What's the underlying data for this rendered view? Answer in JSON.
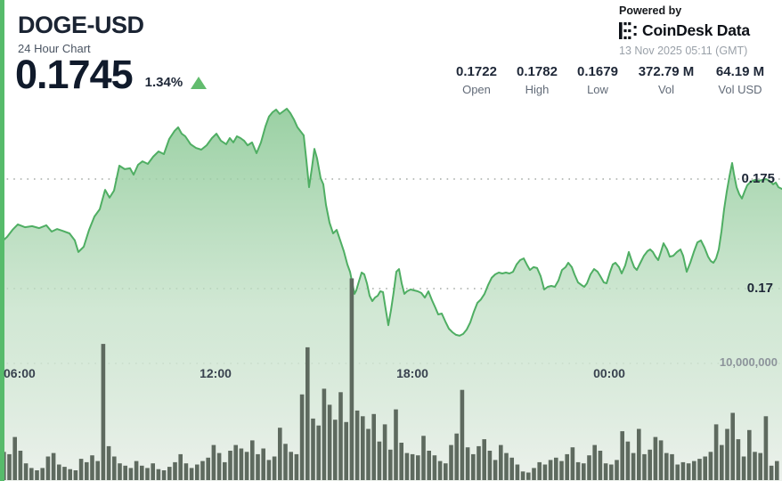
{
  "header": {
    "symbol": "DOGE-USD",
    "subtitle": "24 Hour Chart",
    "price": "0.1745",
    "change_percent": "1.34%",
    "change_direction": "up"
  },
  "attribution": {
    "powered_by": "Powered by",
    "brand": "CoinDesk Data",
    "timestamp": "13 Nov 2025 05:11 (GMT)"
  },
  "stats": [
    {
      "value": "0.1722",
      "label": "Open"
    },
    {
      "value": "0.1782",
      "label": "High"
    },
    {
      "value": "0.1679",
      "label": "Low"
    },
    {
      "value": "372.79 M",
      "label": "Vol"
    },
    {
      "value": "64.19 M",
      "label": "Vol USD"
    }
  ],
  "chart_data": {
    "type": "area",
    "title": "DOGE-USD 24 Hour Chart",
    "x_ticks": [
      "06:00",
      "12:00",
      "18:00",
      "00:00"
    ],
    "price_axis": {
      "gridlines": [
        0.175,
        0.17
      ],
      "labels": [
        "0.175",
        "0.17"
      ],
      "range_shown": [
        0.1665,
        0.1785
      ]
    },
    "volume_axis": {
      "gridline_millions": 10,
      "label": "10,000,000"
    },
    "summary": {
      "open": 0.1722,
      "high": 0.1782,
      "low": 0.1679,
      "close": 0.1745,
      "volume": "372.79 M",
      "volume_usd": "64.19 M"
    },
    "colors": {
      "line": "#4fae63",
      "area_top": "#86c791",
      "area_mid": "#c2e0c6",
      "area_bottom": "#ecf1ec",
      "volume_bar": "#5e6a5f",
      "accent": "#57bb6b",
      "grid_dot": "#a6aca7",
      "up": "#62bc6e"
    },
    "price_series": [
      [
        0,
        0.17207
      ],
      [
        8,
        0.17236
      ],
      [
        14,
        0.17268
      ],
      [
        20,
        0.17293
      ],
      [
        28,
        0.1728
      ],
      [
        36,
        0.17285
      ],
      [
        44,
        0.17276
      ],
      [
        52,
        0.17289
      ],
      [
        58,
        0.1726
      ],
      [
        64,
        0.17272
      ],
      [
        70,
        0.17264
      ],
      [
        78,
        0.17252
      ],
      [
        84,
        0.1722
      ],
      [
        88,
        0.17167
      ],
      [
        94,
        0.17191
      ],
      [
        100,
        0.17268
      ],
      [
        106,
        0.17329
      ],
      [
        112,
        0.17362
      ],
      [
        118,
        0.17451
      ],
      [
        123,
        0.17415
      ],
      [
        128,
        0.17447
      ],
      [
        134,
        0.17561
      ],
      [
        140,
        0.17545
      ],
      [
        146,
        0.17549
      ],
      [
        150,
        0.1752
      ],
      [
        155,
        0.17565
      ],
      [
        160,
        0.17581
      ],
      [
        166,
        0.17569
      ],
      [
        172,
        0.17602
      ],
      [
        178,
        0.17626
      ],
      [
        184,
        0.17614
      ],
      [
        190,
        0.17683
      ],
      [
        196,
        0.1772
      ],
      [
        200,
        0.17736
      ],
      [
        204,
        0.17707
      ],
      [
        208,
        0.17695
      ],
      [
        214,
        0.17659
      ],
      [
        220,
        0.17642
      ],
      [
        226,
        0.17634
      ],
      [
        232,
        0.17654
      ],
      [
        238,
        0.17687
      ],
      [
        243,
        0.17707
      ],
      [
        248,
        0.17675
      ],
      [
        254,
        0.17659
      ],
      [
        258,
        0.17687
      ],
      [
        262,
        0.17667
      ],
      [
        266,
        0.17695
      ],
      [
        270,
        0.17687
      ],
      [
        274,
        0.17675
      ],
      [
        278,
        0.17654
      ],
      [
        283,
        0.17667
      ],
      [
        288,
        0.17618
      ],
      [
        293,
        0.17667
      ],
      [
        298,
        0.1774
      ],
      [
        302,
        0.17785
      ],
      [
        306,
        0.17805
      ],
      [
        310,
        0.17817
      ],
      [
        314,
        0.17797
      ],
      [
        318,
        0.17809
      ],
      [
        322,
        0.17821
      ],
      [
        326,
        0.17801
      ],
      [
        330,
        0.17772
      ],
      [
        334,
        0.17736
      ],
      [
        338,
        0.17715
      ],
      [
        341,
        0.17699
      ],
      [
        344,
        0.17585
      ],
      [
        347,
        0.17463
      ],
      [
        350,
        0.17545
      ],
      [
        353,
        0.17638
      ],
      [
        356,
        0.17594
      ],
      [
        360,
        0.17504
      ],
      [
        363,
        0.17476
      ],
      [
        366,
        0.17382
      ],
      [
        370,
        0.17301
      ],
      [
        374,
        0.17252
      ],
      [
        378,
        0.17268
      ],
      [
        382,
        0.1722
      ],
      [
        386,
        0.17171
      ],
      [
        390,
        0.1711
      ],
      [
        393,
        0.17077
      ],
      [
        396,
        0.17016
      ],
      [
        398,
        0.16976
      ],
      [
        400,
        0.16992
      ],
      [
        403,
        0.17033
      ],
      [
        406,
        0.17073
      ],
      [
        409,
        0.17065
      ],
      [
        412,
        0.17024
      ],
      [
        415,
        0.16967
      ],
      [
        418,
        0.16943
      ],
      [
        421,
        0.16959
      ],
      [
        424,
        0.16967
      ],
      [
        427,
        0.16988
      ],
      [
        430,
        0.16984
      ],
      [
        433,
        0.16907
      ],
      [
        436,
        0.16833
      ],
      [
        439,
        0.16902
      ],
      [
        442,
        0.16984
      ],
      [
        445,
        0.17077
      ],
      [
        448,
        0.17089
      ],
      [
        451,
        0.17024
      ],
      [
        454,
        0.16976
      ],
      [
        457,
        0.16988
      ],
      [
        461,
        0.16996
      ],
      [
        465,
        0.16992
      ],
      [
        469,
        0.16988
      ],
      [
        473,
        0.1698
      ],
      [
        477,
        0.16959
      ],
      [
        481,
        0.16988
      ],
      [
        485,
        0.16947
      ],
      [
        489,
        0.16911
      ],
      [
        492,
        0.16882
      ],
      [
        496,
        0.16886
      ],
      [
        500,
        0.1685
      ],
      [
        504,
        0.16817
      ],
      [
        508,
        0.16801
      ],
      [
        512,
        0.16789
      ],
      [
        516,
        0.16785
      ],
      [
        520,
        0.16793
      ],
      [
        524,
        0.16813
      ],
      [
        528,
        0.16846
      ],
      [
        532,
        0.16894
      ],
      [
        536,
        0.16935
      ],
      [
        540,
        0.16951
      ],
      [
        544,
        0.16976
      ],
      [
        548,
        0.17016
      ],
      [
        552,
        0.17049
      ],
      [
        556,
        0.17065
      ],
      [
        560,
        0.17073
      ],
      [
        564,
        0.17069
      ],
      [
        568,
        0.17073
      ],
      [
        572,
        0.17069
      ],
      [
        576,
        0.17077
      ],
      [
        580,
        0.1711
      ],
      [
        584,
        0.1713
      ],
      [
        588,
        0.17138
      ],
      [
        592,
        0.17106
      ],
      [
        595,
        0.17085
      ],
      [
        599,
        0.17098
      ],
      [
        603,
        0.17094
      ],
      [
        607,
        0.17057
      ],
      [
        611,
        0.16996
      ],
      [
        615,
        0.17008
      ],
      [
        619,
        0.17012
      ],
      [
        623,
        0.17008
      ],
      [
        627,
        0.17037
      ],
      [
        631,
        0.17085
      ],
      [
        635,
        0.17098
      ],
      [
        638,
        0.17118
      ],
      [
        642,
        0.17098
      ],
      [
        645,
        0.17065
      ],
      [
        649,
        0.17028
      ],
      [
        653,
        0.17016
      ],
      [
        656,
        0.17008
      ],
      [
        659,
        0.17024
      ],
      [
        663,
        0.17065
      ],
      [
        667,
        0.17089
      ],
      [
        671,
        0.17077
      ],
      [
        674,
        0.17057
      ],
      [
        678,
        0.17028
      ],
      [
        681,
        0.17024
      ],
      [
        685,
        0.17077
      ],
      [
        688,
        0.1711
      ],
      [
        691,
        0.17118
      ],
      [
        695,
        0.17098
      ],
      [
        698,
        0.17069
      ],
      [
        702,
        0.17106
      ],
      [
        706,
        0.17167
      ],
      [
        709,
        0.1713
      ],
      [
        712,
        0.17098
      ],
      [
        715,
        0.17085
      ],
      [
        719,
        0.17118
      ],
      [
        723,
        0.1715
      ],
      [
        727,
        0.17171
      ],
      [
        730,
        0.17179
      ],
      [
        733,
        0.17167
      ],
      [
        736,
        0.17146
      ],
      [
        739,
        0.1713
      ],
      [
        742,
        0.17167
      ],
      [
        745,
        0.17207
      ],
      [
        749,
        0.17179
      ],
      [
        752,
        0.17146
      ],
      [
        756,
        0.1715
      ],
      [
        760,
        0.17167
      ],
      [
        764,
        0.17179
      ],
      [
        767,
        0.1715
      ],
      [
        771,
        0.17077
      ],
      [
        775,
        0.17118
      ],
      [
        779,
        0.17167
      ],
      [
        783,
        0.17211
      ],
      [
        787,
        0.1722
      ],
      [
        791,
        0.17187
      ],
      [
        795,
        0.17146
      ],
      [
        798,
        0.17126
      ],
      [
        801,
        0.17118
      ],
      [
        804,
        0.17138
      ],
      [
        807,
        0.17179
      ],
      [
        810,
        0.1726
      ],
      [
        813,
        0.17362
      ],
      [
        816,
        0.17443
      ],
      [
        819,
        0.17512
      ],
      [
        822,
        0.17573
      ],
      [
        824,
        0.17524
      ],
      [
        827,
        0.17463
      ],
      [
        830,
        0.17431
      ],
      [
        833,
        0.17411
      ],
      [
        836,
        0.17443
      ],
      [
        839,
        0.17472
      ],
      [
        842,
        0.17484
      ],
      [
        845,
        0.17492
      ],
      [
        848,
        0.17496
      ],
      [
        852,
        0.17492
      ],
      [
        856,
        0.17496
      ],
      [
        860,
        0.175
      ],
      [
        864,
        0.17492
      ],
      [
        868,
        0.17476
      ],
      [
        871,
        0.17484
      ],
      [
        874,
        0.17463
      ],
      [
        878,
        0.17455
      ]
    ],
    "volume_series_millions": [
      2.3,
      2.1,
      3.6,
      2.4,
      1.3,
      0.9,
      0.7,
      0.9,
      1.9,
      2.2,
      1.2,
      1.0,
      0.8,
      0.7,
      1.7,
      1.4,
      2.0,
      1.5,
      11.7,
      2.8,
      1.9,
      1.3,
      1.1,
      0.9,
      1.5,
      1.1,
      0.9,
      1.3,
      0.8,
      0.7,
      1.0,
      1.4,
      2.1,
      1.3,
      0.9,
      1.2,
      1.5,
      1.8,
      2.9,
      2.2,
      1.4,
      2.4,
      2.9,
      2.6,
      2.3,
      3.3,
      2.1,
      2.6,
      1.6,
      1.9,
      4.4,
      3.0,
      2.3,
      2.1,
      7.3,
      11.4,
      5.2,
      4.6,
      7.8,
      6.4,
      5.1,
      7.5,
      4.9,
      17.4,
      5.9,
      5.4,
      4.3,
      5.6,
      3.2,
      4.7,
      2.5,
      6.0,
      3.1,
      2.2,
      2.1,
      2.0,
      3.7,
      2.4,
      2.0,
      1.5,
      1.3,
      2.9,
      3.9,
      7.7,
      2.7,
      2.1,
      2.8,
      3.4,
      2.4,
      1.6,
      2.9,
      2.2,
      1.8,
      1.2,
      0.6,
      0.5,
      0.9,
      1.4,
      1.2,
      1.6,
      1.8,
      1.5,
      2.1,
      2.7,
      1.4,
      1.3,
      2.0,
      2.9,
      2.4,
      1.3,
      1.2,
      1.6,
      4.1,
      3.2,
      2.2,
      4.3,
      2.1,
      2.5,
      3.6,
      3.3,
      2.2,
      2.1,
      1.2,
      1.4,
      1.3,
      1.5,
      1.7,
      1.9,
      2.3,
      4.7,
      2.9,
      4.3,
      5.7,
      3.4,
      1.9,
      4.2,
      2.3,
      2.2,
      5.4,
      1.1,
      1.5
    ]
  }
}
